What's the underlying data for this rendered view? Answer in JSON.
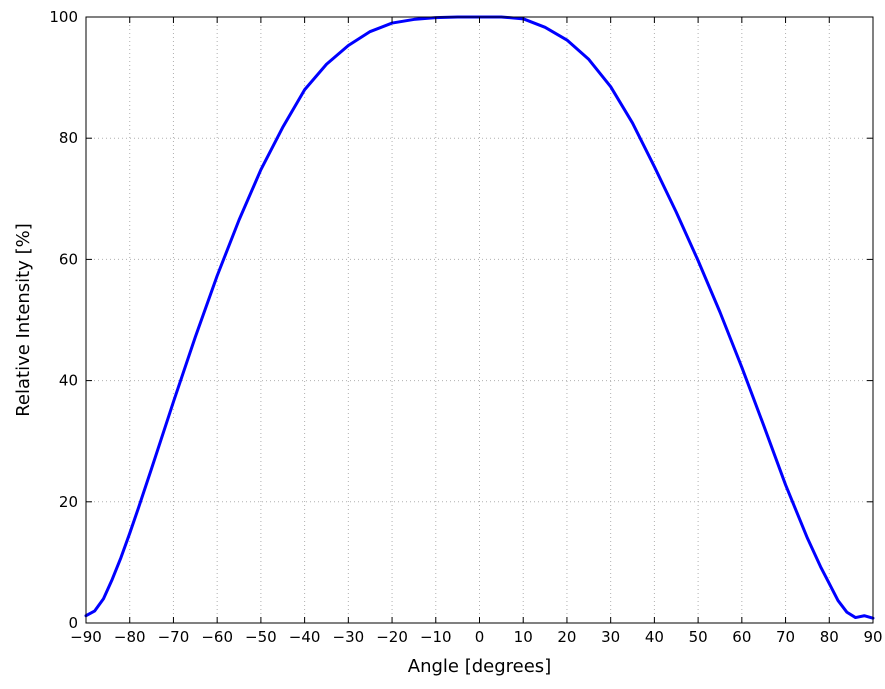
{
  "chart_data": {
    "type": "line",
    "title": "",
    "xlabel": "Angle [degrees]",
    "ylabel": "Relative Intensity [%]",
    "xlim": [
      -90,
      90
    ],
    "ylim": [
      0,
      100
    ],
    "grid": true,
    "grid_style": "dotted",
    "x_ticks": [
      -90,
      -80,
      -70,
      -60,
      -50,
      -40,
      -30,
      -20,
      -10,
      0,
      10,
      20,
      30,
      40,
      50,
      60,
      70,
      80,
      90
    ],
    "x_tick_labels": [
      "−90",
      "−80",
      "−70",
      "−60",
      "−50",
      "−40",
      "−30",
      "−20",
      "−10",
      "0",
      "10",
      "20",
      "30",
      "40",
      "50",
      "60",
      "70",
      "80",
      "90"
    ],
    "y_ticks": [
      0,
      20,
      40,
      60,
      80,
      100
    ],
    "y_tick_labels": [
      "0",
      "20",
      "40",
      "60",
      "80",
      "100"
    ],
    "series": [
      {
        "color": "#0000ff",
        "x": [
          -90,
          -88,
          -86,
          -84,
          -82,
          -80,
          -78,
          -75,
          -70,
          -65,
          -60,
          -55,
          -50,
          -45,
          -40,
          -35,
          -30,
          -25,
          -20,
          -15,
          -10,
          -5,
          0,
          5,
          10,
          15,
          20,
          25,
          30,
          35,
          40,
          45,
          50,
          55,
          60,
          65,
          70,
          75,
          78,
          80,
          82,
          84,
          86,
          88,
          90
        ],
        "y": [
          1.2,
          2.0,
          4.0,
          7.2,
          10.8,
          14.8,
          19.0,
          25.5,
          36.5,
          47.2,
          57.3,
          66.5,
          74.8,
          81.8,
          88.0,
          92.2,
          95.3,
          97.6,
          99.0,
          99.6,
          99.9,
          100.0,
          100.0,
          100.0,
          99.7,
          98.3,
          96.2,
          93.0,
          88.5,
          82.5,
          75.3,
          67.8,
          59.8,
          51.3,
          42.2,
          32.6,
          22.8,
          14.0,
          9.3,
          6.5,
          3.7,
          1.8,
          0.9,
          1.2,
          0.8
        ]
      }
    ]
  }
}
